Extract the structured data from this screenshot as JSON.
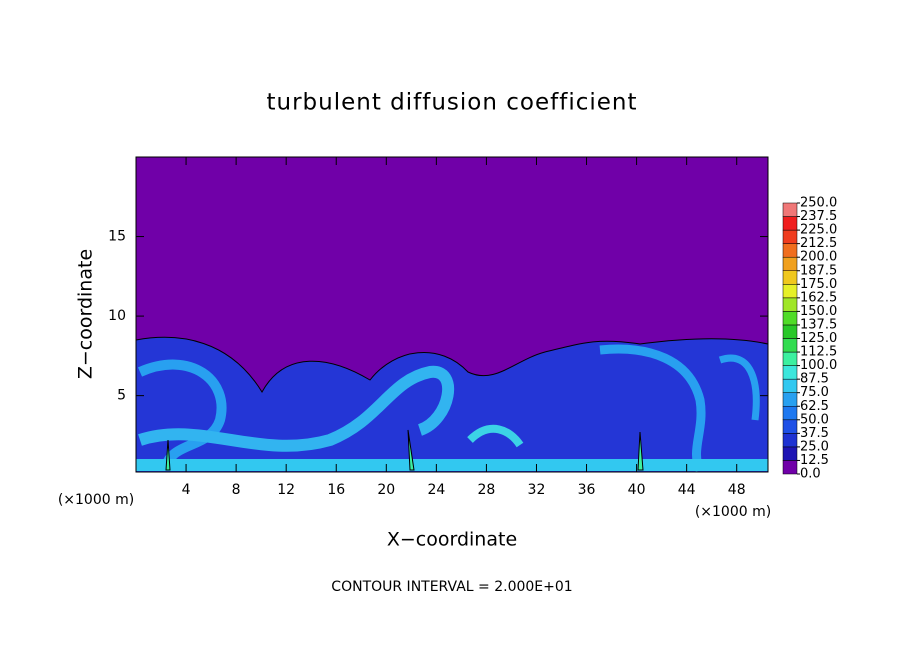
{
  "chart_data": {
    "type": "contour",
    "title": "turbulent diffusion coefficient",
    "x_label": "X−coordinate",
    "y_label": "Z−coordinate",
    "x_unit_label": "(×1000 m)",
    "annotation": "CONTOUR INTERVAL = 2.000E+01",
    "xlim": [
      0,
      50.5
    ],
    "xticks": [
      4,
      8,
      12,
      16,
      20,
      24,
      28,
      32,
      36,
      40,
      44,
      48
    ],
    "ylim": [
      0.2,
      20
    ],
    "yticks": [
      5,
      10,
      15
    ],
    "colorbar": {
      "levels": [
        {
          "value": 0,
          "label": "0.0"
        },
        {
          "value": 12.5,
          "label": "12.5"
        },
        {
          "value": 25,
          "label": "25.0"
        },
        {
          "value": 37.5,
          "label": "37.5"
        },
        {
          "value": 50,
          "label": "50.0"
        },
        {
          "value": 62.5,
          "label": "62.5"
        },
        {
          "value": 75,
          "label": "75.0"
        },
        {
          "value": 87.5,
          "label": "87.5"
        },
        {
          "value": 100,
          "label": "100.0"
        },
        {
          "value": 112.5,
          "label": "112.5"
        },
        {
          "value": 125,
          "label": "125.0"
        },
        {
          "value": 137.5,
          "label": "137.5"
        },
        {
          "value": 150,
          "label": "150.0"
        },
        {
          "value": 162.5,
          "label": "162.5"
        },
        {
          "value": 175,
          "label": "175.0"
        },
        {
          "value": 187.5,
          "label": "187.5"
        },
        {
          "value": 200,
          "label": "200.0"
        },
        {
          "value": 212.5,
          "label": "212.5"
        },
        {
          "value": 225,
          "label": "225.0"
        },
        {
          "value": 237.5,
          "label": "237.5"
        },
        {
          "value": 250,
          "label": "250.0"
        }
      ],
      "colors": [
        "#7000a8",
        "#1e14b4",
        "#1e32d2",
        "#1e50e6",
        "#1e78f0",
        "#28a0f0",
        "#32c8f0",
        "#3ce6dc",
        "#3cf0a0",
        "#32dc50",
        "#28c828",
        "#50dc28",
        "#a0e628",
        "#e6f028",
        "#f0c81e",
        "#f0a01e",
        "#f06e1e",
        "#f03c1e",
        "#f01e1e",
        "#f07878"
      ]
    }
  }
}
